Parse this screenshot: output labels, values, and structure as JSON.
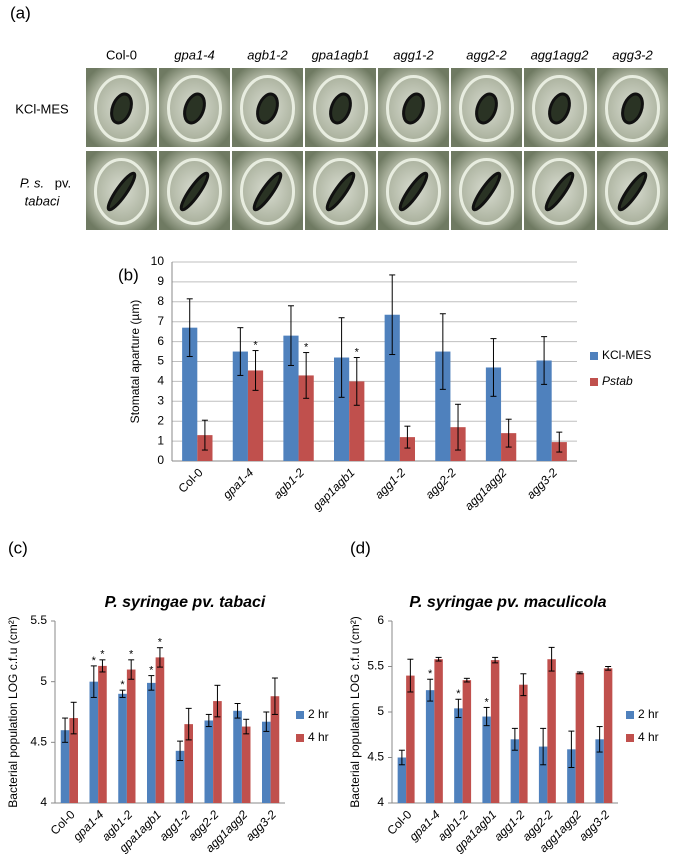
{
  "panel_labels": [
    "(a)",
    "(b)",
    "(c)",
    "(d)"
  ],
  "micrograph": {
    "columns": [
      "Col-0",
      "gpa1-4",
      "agb1-2",
      "gpa1agb1",
      "agg1-2",
      "agg2-2",
      "agg1agg2",
      "agg3-2"
    ],
    "rows": [
      [
        "KCl-MES"
      ],
      [
        "P. s.",
        "pv.",
        "tabaci"
      ]
    ]
  },
  "chart_data": [
    {
      "type": "bar",
      "y_label": "Stomatal aparture (µm)",
      "categories": [
        "Col-0",
        "gpa1-4",
        "agb1-2",
        "gap1agb1",
        "agg1-2",
        "agg2-2",
        "agg1agg2",
        "agg3-2"
      ],
      "ylim": [
        0,
        10
      ],
      "yticks": [
        0,
        1,
        2,
        3,
        4,
        5,
        6,
        7,
        8,
        9,
        10
      ],
      "grid": true,
      "legend": "right",
      "series": [
        {
          "name": "KCl-MES",
          "color": "#4f81bd",
          "values": [
            6.7,
            5.5,
            6.3,
            5.2,
            7.35,
            5.5,
            4.7,
            5.05
          ],
          "errors": [
            1.45,
            1.2,
            1.5,
            2.0,
            2.0,
            1.9,
            1.45,
            1.2
          ]
        },
        {
          "name": "Pstab",
          "color": "#c0504d",
          "values": [
            1.3,
            4.55,
            4.3,
            4.0,
            1.2,
            1.7,
            1.4,
            0.95
          ],
          "errors": [
            0.75,
            1.0,
            1.15,
            1.2,
            0.55,
            1.15,
            0.7,
            0.5
          ],
          "significance": [
            null,
            "*",
            "*",
            "*",
            null,
            null,
            null,
            null
          ]
        }
      ]
    },
    {
      "type": "bar",
      "title": "P. syringae pv. tabaci",
      "y_label": "Bacterial population LOG c.f.u (cm²)",
      "categories": [
        "Col-0",
        "gpa1-4",
        "agb1-2",
        "gpa1agb1",
        "agg1-2",
        "agg2-2",
        "agg1agg2",
        "agg3-2"
      ],
      "ylim": [
        4,
        5.5
      ],
      "yticks": [
        4,
        4.5,
        5,
        5.5
      ],
      "grid": false,
      "legend": "right",
      "series": [
        {
          "name": "2 hr",
          "color": "#4f81bd",
          "values": [
            4.6,
            5.0,
            4.9,
            4.99,
            4.43,
            4.68,
            4.76,
            4.67
          ],
          "errors": [
            0.1,
            0.13,
            0.03,
            0.06,
            0.08,
            0.05,
            0.06,
            0.08
          ],
          "significance": [
            null,
            "*",
            "*",
            "*",
            null,
            null,
            null,
            null
          ]
        },
        {
          "name": "4 hr",
          "color": "#c0504d",
          "values": [
            4.7,
            5.13,
            5.1,
            5.2,
            4.65,
            4.84,
            4.63,
            4.88
          ],
          "errors": [
            0.13,
            0.05,
            0.08,
            0.08,
            0.13,
            0.13,
            0.06,
            0.15
          ],
          "significance": [
            null,
            "*",
            "*",
            "*",
            null,
            null,
            null,
            null
          ]
        }
      ]
    },
    {
      "type": "bar",
      "title": "P. syringae pv. maculicola",
      "y_label": "Bacterial population LOG c.f.u (cm²)",
      "categories": [
        "Col-0",
        "gpa1-4",
        "agb1-2",
        "gpa1agb1",
        "agg1-2",
        "agg2-2",
        "agg1agg2",
        "agg3-2"
      ],
      "ylim": [
        4,
        6
      ],
      "yticks": [
        4,
        4.5,
        5,
        5.5,
        6
      ],
      "grid": false,
      "legend": "right",
      "series": [
        {
          "name": "2 hr",
          "color": "#4f81bd",
          "values": [
            4.5,
            5.24,
            5.04,
            4.95,
            4.7,
            4.62,
            4.59,
            4.7
          ],
          "errors": [
            0.08,
            0.12,
            0.1,
            0.1,
            0.12,
            0.2,
            0.2,
            0.14
          ],
          "significance": [
            null,
            "*",
            "*",
            "*",
            null,
            null,
            null,
            null
          ]
        },
        {
          "name": "4 hr",
          "color": "#c0504d",
          "values": [
            5.4,
            5.58,
            5.35,
            5.57,
            5.3,
            5.58,
            5.43,
            5.48
          ],
          "errors": [
            0.18,
            0.02,
            0.02,
            0.03,
            0.12,
            0.13,
            0.01,
            0.02
          ]
        }
      ]
    }
  ]
}
